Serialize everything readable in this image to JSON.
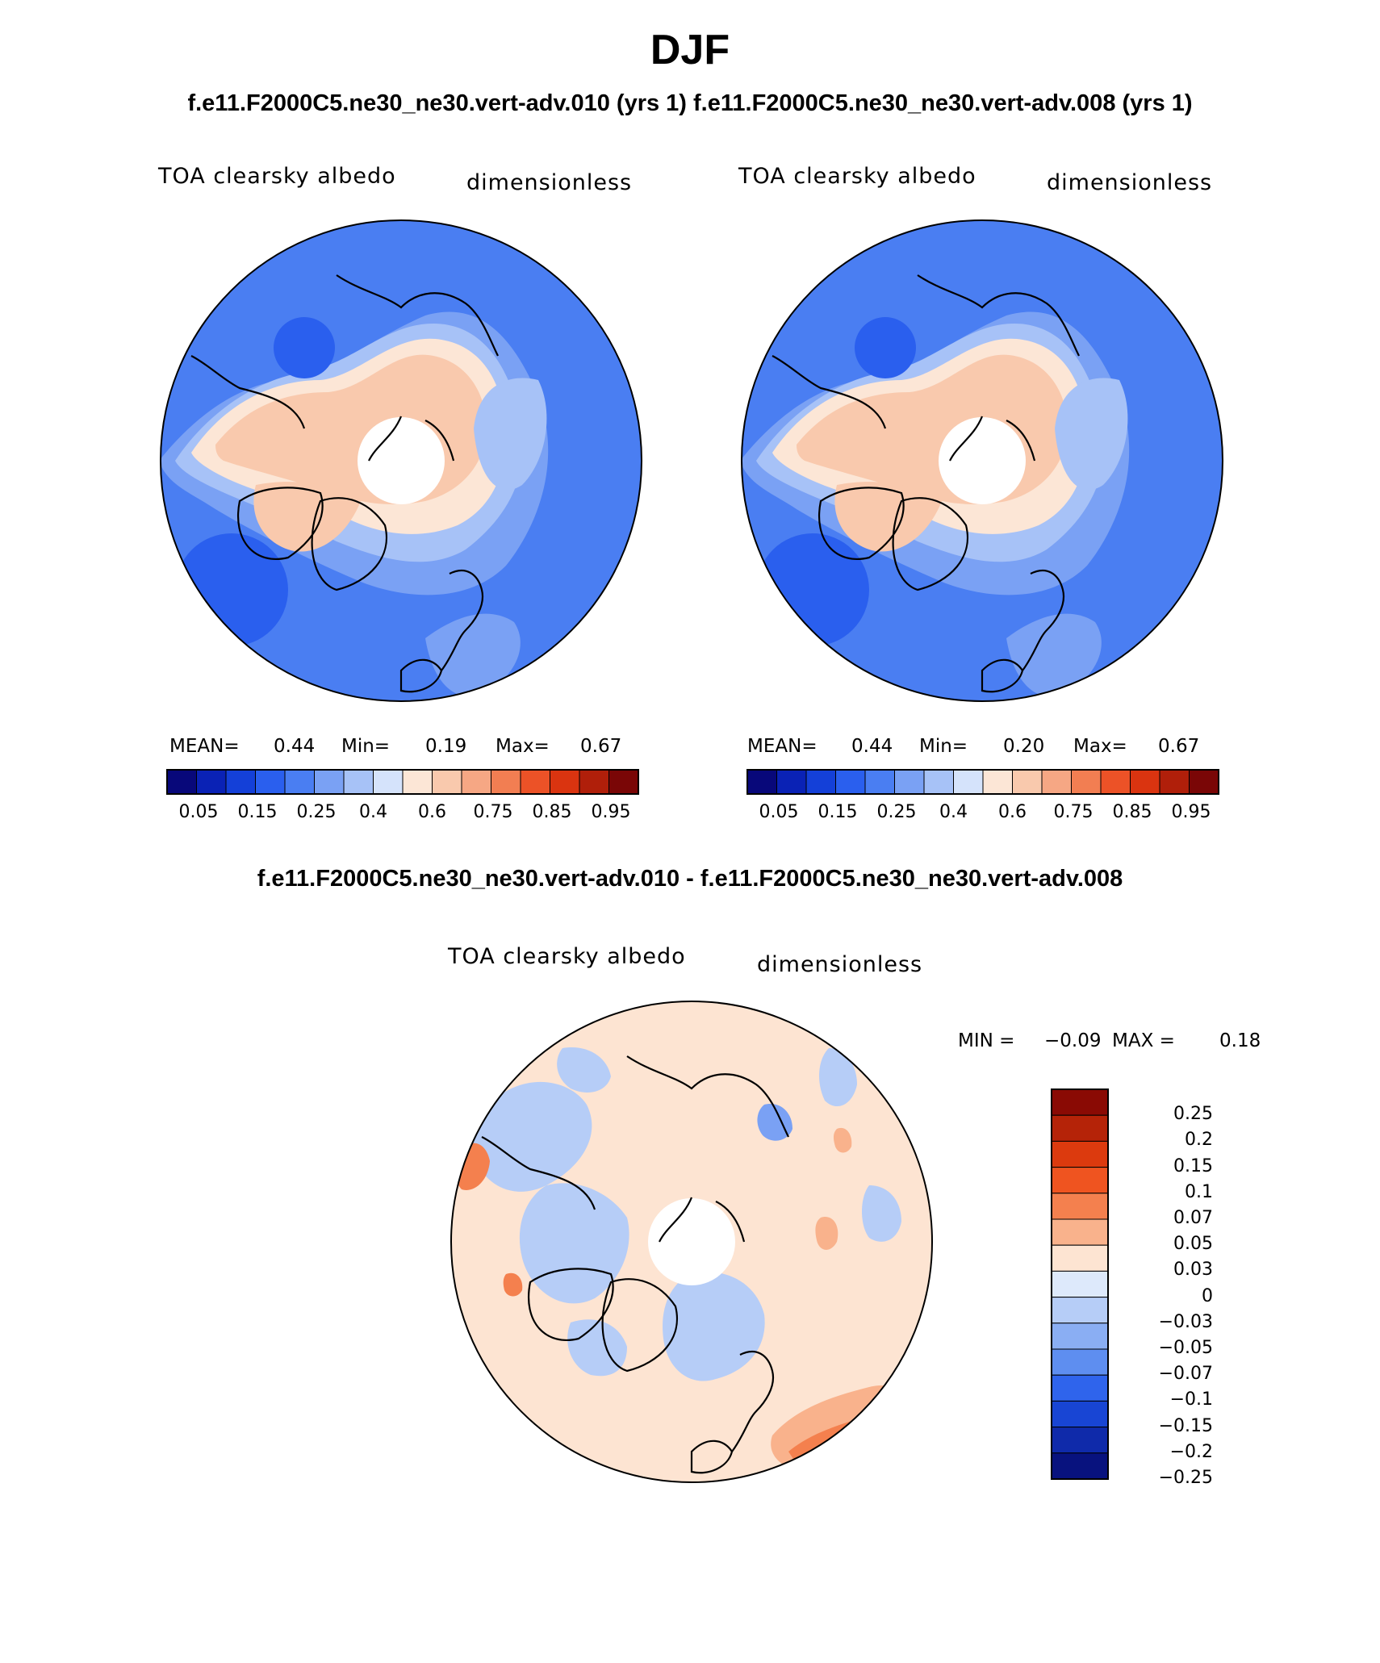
{
  "title": "DJF",
  "subtitle": "f.e11.F2000C5.ne30_ne30.vert-adv.010 (yrs 1) f.e11.F2000C5.ne30_ne30.vert-adv.008 (yrs 1)",
  "diff_title": "f.e11.F2000C5.ne30_ne30.vert-adv.010 - f.e11.F2000C5.ne30_ne30.vert-adv.008",
  "panels": [
    {
      "variable": "TOA clearsky albedo",
      "units": "dimensionless",
      "stats": {
        "mean_label": "MEAN=",
        "mean": "0.44",
        "min_label": "Min=",
        "min": "0.19",
        "max_label": "Max=",
        "max": "0.67"
      }
    },
    {
      "variable": "TOA clearsky albedo",
      "units": "dimensionless",
      "stats": {
        "mean_label": "MEAN=",
        "mean": "0.44",
        "min_label": "Min=",
        "min": "0.20",
        "max_label": "Max=",
        "max": "0.67"
      }
    }
  ],
  "diff_panel": {
    "variable": "TOA clearsky albedo",
    "units": "dimensionless",
    "minmax": {
      "min_label": "MIN =",
      "min": "−0.09",
      "max_label": "MAX =",
      "max": "0.18"
    }
  },
  "colorbar_main": {
    "tick_labels": [
      "0.05",
      "0.15",
      "0.25",
      "0.4",
      "0.6",
      "0.75",
      "0.85",
      "0.95"
    ],
    "colors": [
      "#08087a",
      "#0a22b5",
      "#1440d8",
      "#2a5fee",
      "#4a7ef2",
      "#7aa1f4",
      "#a7c2f7",
      "#d5e3fb",
      "#fce6d6",
      "#f9c9ad",
      "#f6a784",
      "#f27e52",
      "#ec5227",
      "#da3410",
      "#b01f0a",
      "#7a0606"
    ]
  },
  "colorbar_diff": {
    "levels": [
      "0.25",
      "0.2",
      "0.15",
      "0.1",
      "0.07",
      "0.05",
      "0.03",
      "0",
      "−0.03",
      "−0.05",
      "−0.07",
      "−0.1",
      "−0.15",
      "−0.2",
      "−0.25"
    ],
    "colors_top_to_bottom": [
      "#8a0a04",
      "#b52308",
      "#dc3a0e",
      "#ef5420",
      "#f4804e",
      "#f9b28c",
      "#fde4d2",
      "#dde9fb",
      "#b6cdf7",
      "#8aaef3",
      "#5e8ef0",
      "#2f64ec",
      "#1845d4",
      "#0f2aaa",
      "#08127e"
    ]
  },
  "map_colors": {
    "ocean_low": "#4a7ef2",
    "ocean_mid": "#7aa1f4",
    "transition": "#a7c2f7",
    "pale": "#d5e3fb",
    "land_high": "#f9c9ad",
    "land_mid": "#fce6d6",
    "diff_background": "#fde4d2",
    "diff_negative": "#b6cdf7"
  }
}
